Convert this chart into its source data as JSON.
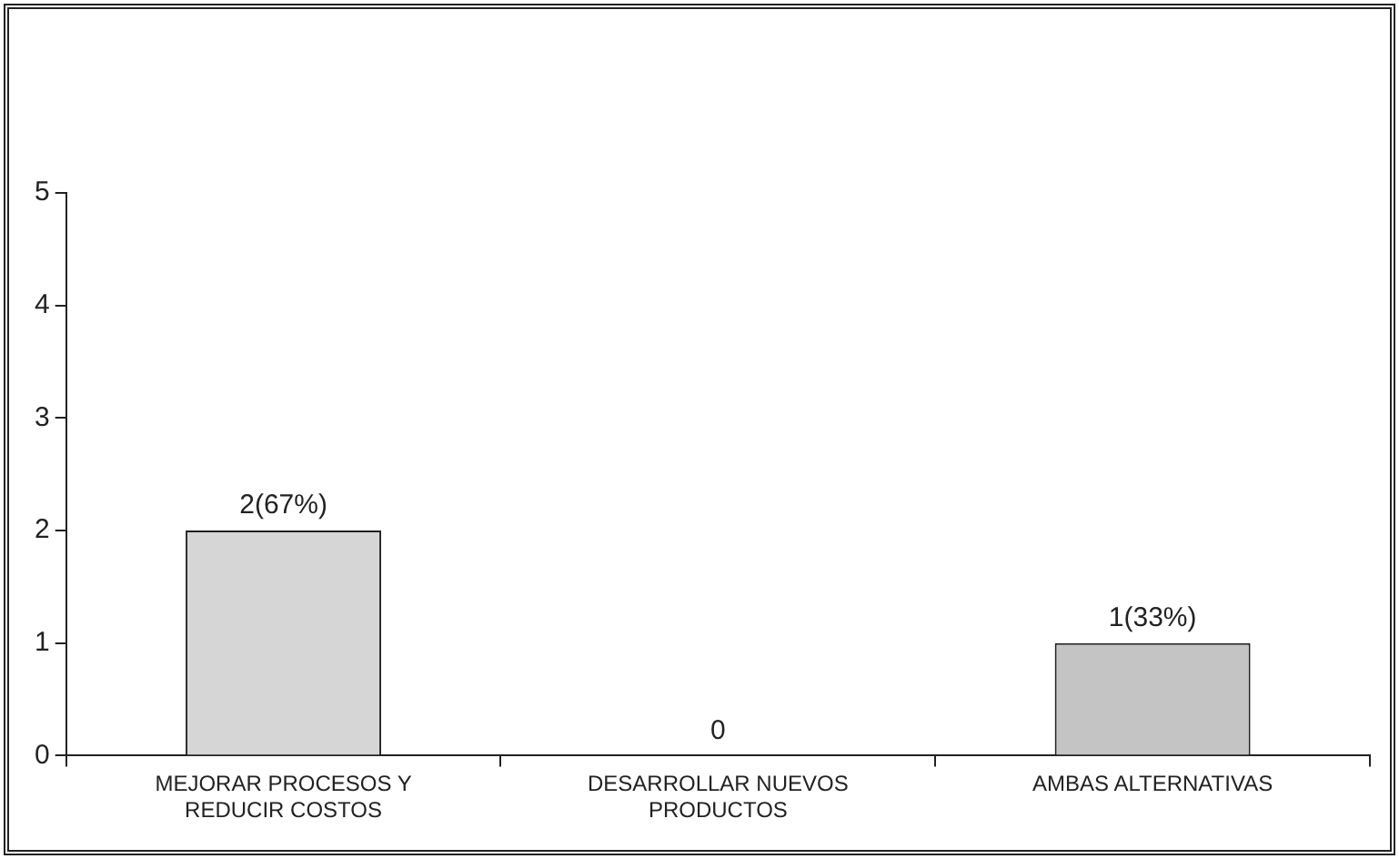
{
  "chart_data": {
    "type": "bar",
    "categories": [
      "MEJORAR PROCESOS Y REDUCIR COSTOS",
      "DESARROLLAR NUEVOS PRODUCTOS",
      "AMBAS ALTERNATIVAS"
    ],
    "values": [
      2,
      0,
      1
    ],
    "colors": [
      "#d6d6d6",
      "#d6d6d6",
      "#c4c4c4"
    ],
    "value_labels": [
      "2(67%)",
      "0",
      "1(33%)"
    ],
    "ylim": [
      0,
      5
    ],
    "yticks": [
      0,
      1,
      2,
      3,
      4,
      5
    ],
    "grid": false,
    "legend": false
  }
}
